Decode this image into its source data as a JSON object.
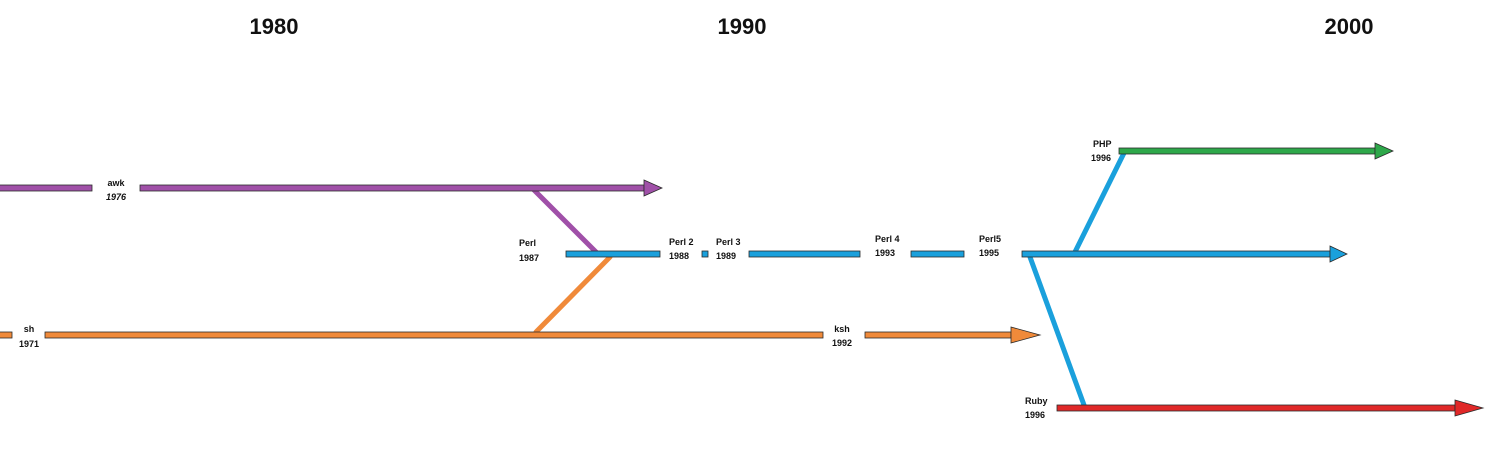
{
  "decades": [
    "1980",
    "1990",
    "2000"
  ],
  "colors": {
    "awk": "#a050a8",
    "sh": "#f08a3a",
    "perl": "#1aa0dc",
    "php": "#2ea84a",
    "ruby": "#e02828",
    "outline": "#2b2b2b"
  },
  "nodes": {
    "awk": {
      "name": "awk",
      "year": "1976"
    },
    "sh": {
      "name": "sh",
      "year": "1971"
    },
    "ksh": {
      "name": "ksh",
      "year": "1992"
    },
    "perl": {
      "name": "Perl",
      "year": "1987"
    },
    "perl2": {
      "name": "Perl 2",
      "year": "1988"
    },
    "perl3": {
      "name": "Perl 3",
      "year": "1989"
    },
    "perl4": {
      "name": "Perl 4",
      "year": "1993"
    },
    "perl5": {
      "name": "Perl5",
      "year": "1995"
    },
    "php": {
      "name": "PHP",
      "year": "1996"
    },
    "ruby": {
      "name": "Ruby",
      "year": "1996"
    }
  }
}
